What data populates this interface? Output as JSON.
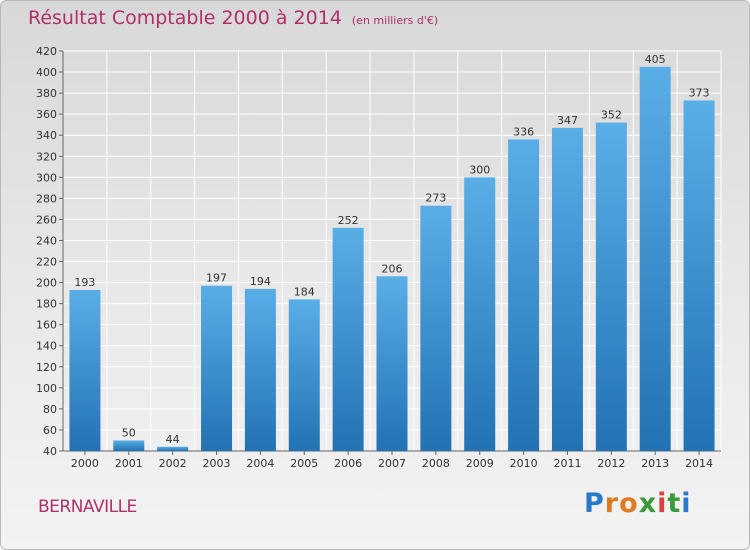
{
  "title": "Résultat Comptable 2000 à 2014",
  "unit": "(en milliers d'€)",
  "commune": "BERNAVILLE",
  "logo": {
    "p": "P",
    "r": "r",
    "o": "o",
    "x": "x",
    "i1": "i",
    "t": "t",
    "i2": "i"
  },
  "colors": {
    "title": "#b0306a",
    "bar_top": "#5aaee6",
    "bar_bottom": "#2272b4"
  },
  "chart_data": {
    "type": "bar",
    "categories": [
      "2000",
      "2001",
      "2002",
      "2003",
      "2004",
      "2005",
      "2006",
      "2007",
      "2008",
      "2009",
      "2010",
      "2011",
      "2012",
      "2013",
      "2014"
    ],
    "values": [
      193,
      50,
      44,
      197,
      194,
      184,
      252,
      206,
      273,
      300,
      336,
      347,
      352,
      405,
      373
    ],
    "ylim": [
      40,
      420
    ],
    "yticks": [
      40,
      60,
      80,
      100,
      120,
      140,
      160,
      180,
      200,
      220,
      240,
      260,
      280,
      300,
      320,
      340,
      360,
      380,
      400,
      420
    ],
    "grid": true
  }
}
